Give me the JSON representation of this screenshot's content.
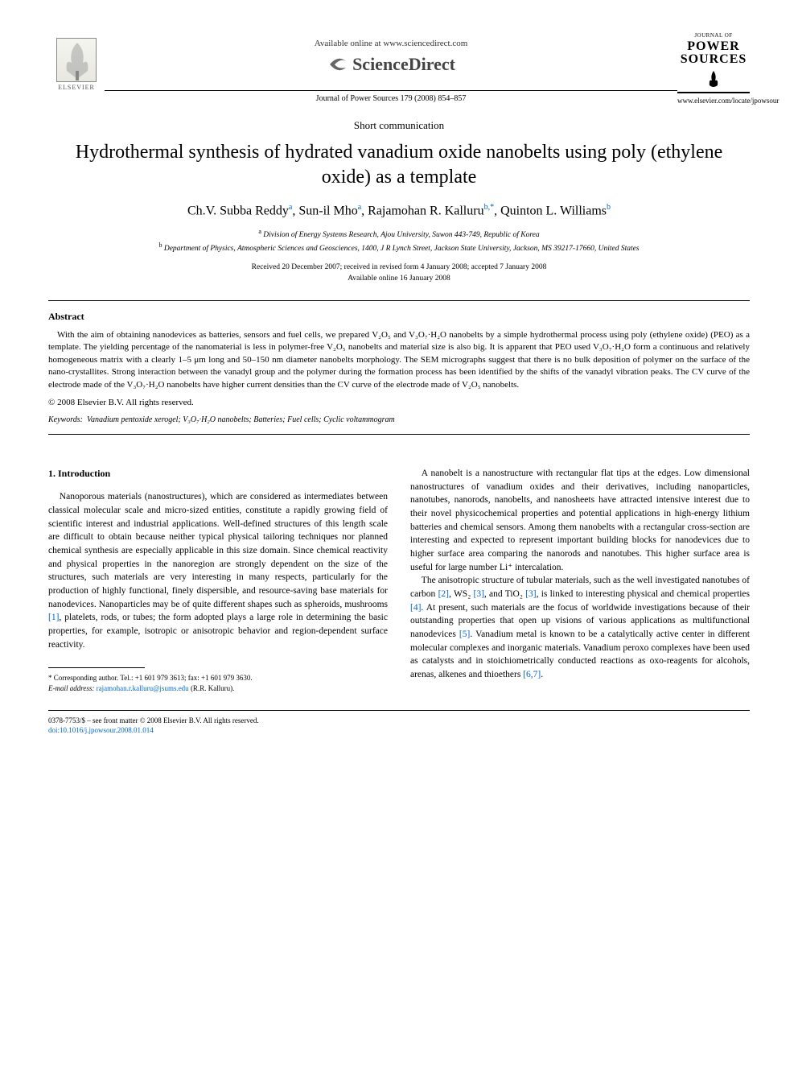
{
  "header": {
    "elsevier_label": "ELSEVIER",
    "available_text": "Available online at www.sciencedirect.com",
    "sciencedirect_label": "ScienceDirect",
    "journal_citation": "Journal of Power Sources 179 (2008) 854–857",
    "journal_logo_top": "JOURNAL OF",
    "journal_logo_main1": "POWER",
    "journal_logo_main2": "SOURCES",
    "journal_url": "www.elsevier.com/locate/jpowsour"
  },
  "article": {
    "type": "Short communication",
    "title": "Hydrothermal synthesis of hydrated vanadium oxide nanobelts using poly (ethylene oxide) as a template",
    "authors_html": "Ch.V. Subba Reddy<sup>a</sup>, Sun-il Mho<sup>a</sup>, Rajamohan R. Kalluru<sup>b,*</sup>, Quinton L. Williams<sup>b</sup>",
    "affiliation_a": "Division of Energy Systems Research, Ajou University, Suwon 443-749, Republic of Korea",
    "affiliation_b": "Department of Physics, Atmospheric Sciences and Geosciences, 1400, J R Lynch Street, Jackson State University, Jackson, MS 39217-17660, United States",
    "dates_line1": "Received 20 December 2007; received in revised form 4 January 2008; accepted 7 January 2008",
    "dates_line2": "Available online 16 January 2008"
  },
  "abstract": {
    "heading": "Abstract",
    "text": "With the aim of obtaining nanodevices as batteries, sensors and fuel cells, we prepared V₂O₅ and V₃O₇·H₂O nanobelts by a simple hydrothermal process using poly (ethylene oxide) (PEO) as a template. The yielding percentage of the nanomaterial is less in polymer-free V₂O₅ nanobelts and material size is also big. It is apparent that PEO used V₃O₇·H₂O form a continuous and relatively homogeneous matrix with a clearly 1–5 μm long and 50–150 nm diameter nanobelts morphology. The SEM micrographs suggest that there is no bulk deposition of polymer on the surface of the nano-crystallites. Strong interaction between the vanadyl group and the polymer during the formation process has been identified by the shifts of the vanadyl vibration peaks. The CV curve of the electrode made of the V₃O₇·H₂O nanobelts have higher current densities than the CV curve of the electrode made of V₂O₅ nanobelts.",
    "copyright": "© 2008 Elsevier B.V. All rights reserved.",
    "keywords_label": "Keywords:",
    "keywords": "Vanadium pentoxide xerogel; V₃O₇·H₂O nanobelts; Batteries; Fuel cells; Cyclic voltammogram"
  },
  "body": {
    "section1_heading": "1. Introduction",
    "col1_p1": "Nanoporous materials (nanostructures), which are considered as intermediates between classical molecular scale and micro-sized entities, constitute a rapidly growing field of scientific interest and industrial applications. Well-defined structures of this length scale are difficult to obtain because neither typical physical tailoring techniques nor planned chemical synthesis are especially applicable in this size domain. Since chemical reactivity and physical properties in the nanoregion are strongly dependent on the size of the structures, such materials are very interesting in many respects, particularly for the production of highly functional, finely dispersible, and resource-saving base materials for nanodevices. Nanoparticles may be of quite different shapes such as spheroids, mushrooms [1], platelets, rods, or tubes; the form adopted plays a large role in determining the basic properties, for example, isotropic or anisotropic behavior and region-dependent surface reactivity.",
    "col2_p1": "A nanobelt is a nanostructure with rectangular flat tips at the edges. Low dimensional nanostructures of vanadium oxides and their derivatives, including nanoparticles, nanotubes, nanorods, nanobelts, and nanosheets have attracted intensive interest due to their novel physicochemical properties and potential applications in high-energy lithium batteries and chemical sensors. Among them nanobelts with a rectangular cross-section are interesting and expected to represent important building blocks for nanodevices due to higher surface area comparing the nanorods and nanotubes. This higher surface area is useful for large number Li⁺ intercalation.",
    "col2_p2": "The anisotropic structure of tubular materials, such as the well investigated nanotubes of carbon [2], WS₂ [3], and TiO₂ [3], is linked to interesting physical and chemical properties [4]. At present, such materials are the focus of worldwide investigations because of their outstanding properties that open up visions of various applications as multifunctional nanodevices [5]. Vanadium metal is known to be a catalytically active center in different molecular complexes and inorganic materials. Vanadium peroxo complexes have been used as catalysts and in stoichiometrically conducted reactions as oxo-reagents for alcohols, arenas, alkenes and thioethers [6,7]."
  },
  "footnote": {
    "corr": "Corresponding author. Tel.: +1 601 979 3613; fax: +1 601 979 3630.",
    "email_label": "E-mail address:",
    "email": "rajamohan.r.kalluru@jsums.edu",
    "email_suffix": "(R.R. Kalluru)."
  },
  "footer": {
    "line1": "0378-7753/$ – see front matter © 2008 Elsevier B.V. All rights reserved.",
    "doi": "doi:10.1016/j.jpowsour.2008.01.014"
  },
  "refs": {
    "r1": "[1]",
    "r2": "[2]",
    "r3": "[3]",
    "r4": "[4]",
    "r5": "[5]",
    "r67": "[6,7]"
  }
}
